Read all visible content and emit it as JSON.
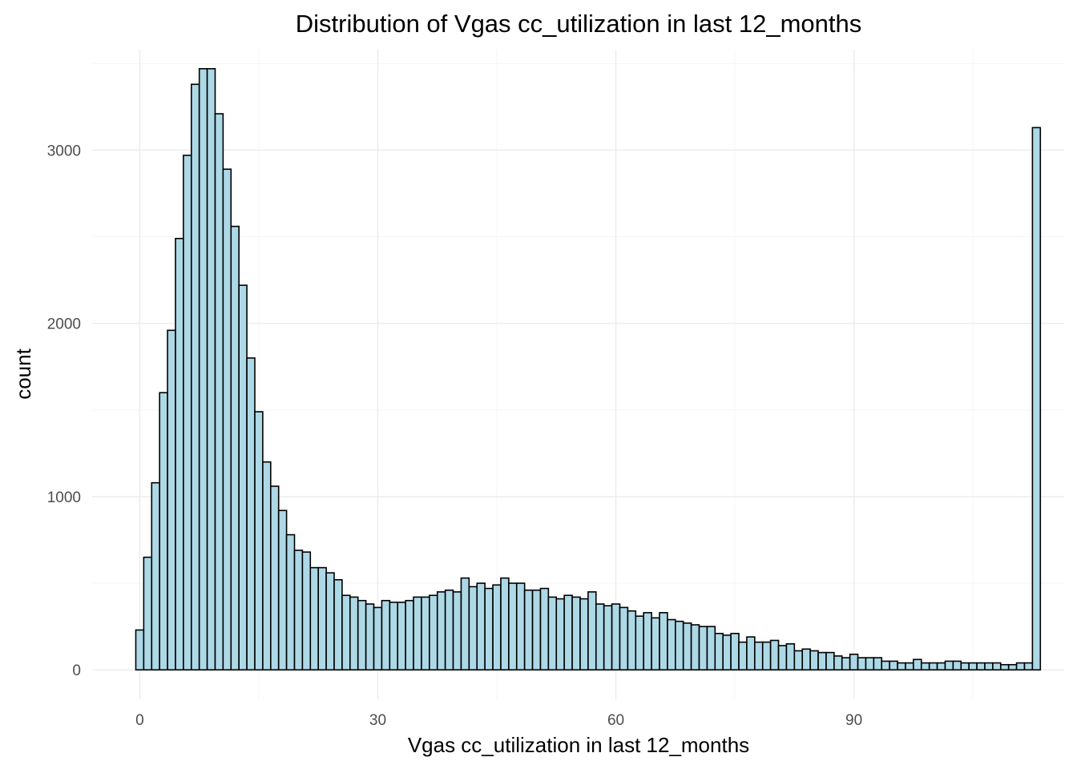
{
  "chart_data": {
    "type": "bar",
    "title": "Distribution of Vgas cc_utilization in last 12_months",
    "xlabel": "Vgas cc_utilization in last 12_months",
    "ylabel": "count",
    "bin_width": 1,
    "bin_start": -0.5,
    "xlim": [
      -6,
      116.5
    ],
    "ylim": [
      -170,
      3580
    ],
    "x_ticks": [
      0,
      30,
      60,
      90
    ],
    "x_minor_ticks": [
      15,
      45,
      75,
      105
    ],
    "y_ticks": [
      0,
      1000,
      2000,
      3000
    ],
    "y_minor_ticks": [
      500,
      1500,
      2500,
      3500
    ],
    "grid": true,
    "bar_fill": "#add8e6",
    "bar_outline": "#000000",
    "values": [
      230,
      650,
      1080,
      1600,
      1960,
      2490,
      2970,
      3380,
      3470,
      3470,
      3210,
      2890,
      2560,
      2220,
      1800,
      1490,
      1200,
      1060,
      920,
      780,
      690,
      680,
      590,
      590,
      560,
      520,
      430,
      420,
      400,
      380,
      360,
      400,
      390,
      390,
      400,
      420,
      420,
      430,
      450,
      460,
      450,
      530,
      480,
      500,
      470,
      490,
      530,
      500,
      500,
      460,
      460,
      470,
      420,
      410,
      430,
      420,
      410,
      450,
      380,
      370,
      380,
      360,
      340,
      310,
      330,
      300,
      330,
      290,
      280,
      270,
      260,
      250,
      250,
      210,
      200,
      210,
      160,
      190,
      160,
      160,
      170,
      140,
      150,
      110,
      120,
      110,
      100,
      100,
      80,
      70,
      90,
      70,
      70,
      70,
      50,
      50,
      40,
      40,
      60,
      40,
      40,
      40,
      50,
      50,
      40,
      40,
      40,
      40,
      40,
      30,
      30,
      40,
      40,
      3130
    ]
  }
}
